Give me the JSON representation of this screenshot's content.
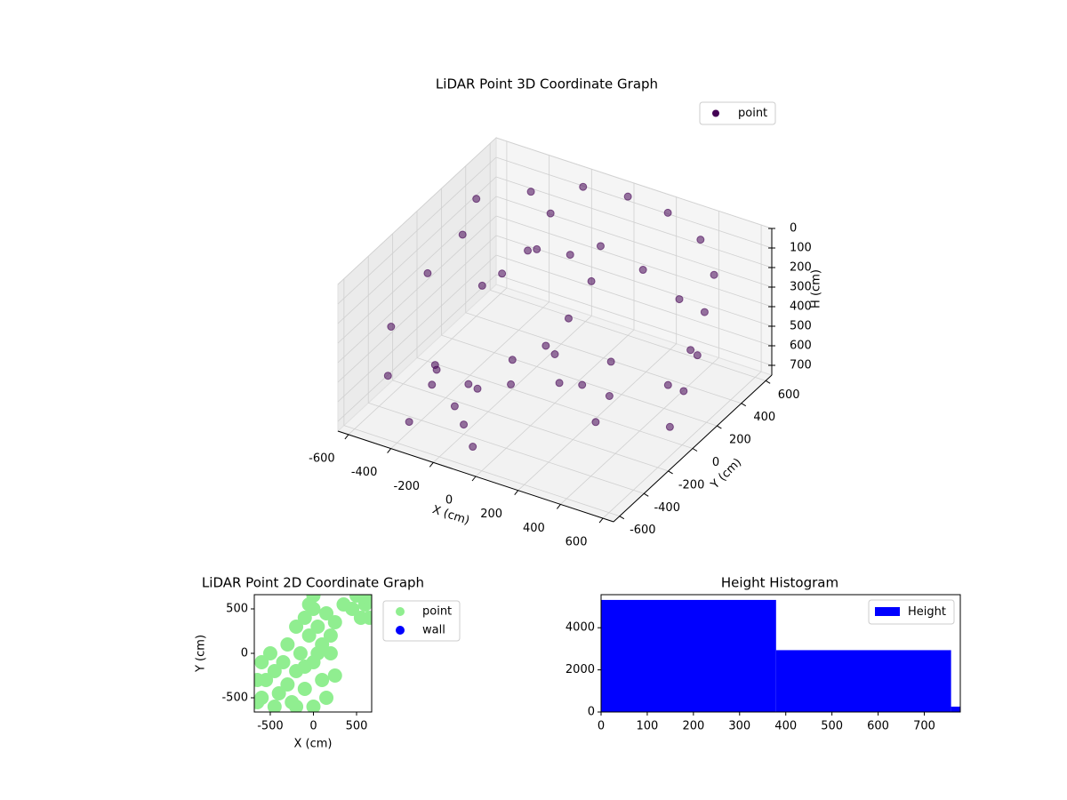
{
  "chart_data": [
    {
      "type": "scatter3d",
      "title": "LiDAR Point 3D Coordinate Graph",
      "xlabel": "X (cm)",
      "ylabel": "Y (cm)",
      "zlabel": "H (cm)",
      "xlim": [
        -650,
        650
      ],
      "ylim": [
        -650,
        650
      ],
      "zlim": [
        0,
        750
      ],
      "z_inverted": true,
      "xticks": [
        -600,
        -400,
        -200,
        0,
        200,
        400,
        600
      ],
      "yticks": [
        -600,
        -400,
        -200,
        0,
        200,
        400,
        600
      ],
      "zticks": [
        0,
        100,
        200,
        300,
        400,
        500,
        600,
        700
      ],
      "legend": "upper right",
      "series": [
        {
          "name": "point",
          "color": "#440154",
          "x": [
            -400,
            -200,
            0,
            200,
            400,
            550,
            620,
            640,
            620,
            500,
            550,
            600,
            300,
            100,
            -100,
            -600,
            -600,
            -500,
            -550,
            -450,
            -400,
            -350,
            -300,
            -600,
            -500,
            -450,
            -200,
            -150,
            -100,
            0,
            50,
            100,
            150,
            200,
            250,
            -50,
            0,
            -100,
            -200,
            -250,
            -300,
            -200,
            -100,
            -250,
            -350,
            -400
          ],
          "y": [
            500,
            580,
            600,
            580,
            500,
            350,
            150,
            0,
            -150,
            300,
            100,
            -100,
            500,
            550,
            550,
            -300,
            0,
            -500,
            200,
            -200,
            100,
            -400,
            300,
            400,
            -100,
            350,
            0,
            -100,
            100,
            0,
            -50,
            50,
            200,
            100,
            -100,
            200,
            300,
            300,
            200,
            400,
            -300,
            -400,
            -500,
            -200,
            -100,
            -500
          ],
          "z": [
            100,
            50,
            40,
            40,
            60,
            100,
            150,
            250,
            350,
            500,
            550,
            600,
            400,
            350,
            300,
            400,
            300,
            500,
            200,
            600,
            350,
            550,
            250,
            150,
            700,
            450,
            600,
            650,
            550,
            500,
            600,
            650,
            600,
            700,
            700,
            450,
            300,
            200,
            150,
            100,
            700,
            700,
            720,
            650,
            720,
            700
          ]
        }
      ]
    },
    {
      "type": "scatter",
      "title": "LiDAR Point 2D Coordinate Graph",
      "xlabel": "X (cm)",
      "ylabel": "Y (cm)",
      "xlim": [
        -685,
        675
      ],
      "ylim": [
        -660,
        660
      ],
      "xticks": [
        -500,
        0,
        500
      ],
      "yticks": [
        -500,
        0,
        500
      ],
      "legend": "outside right",
      "series": [
        {
          "name": "point",
          "color": "#90ee90",
          "x": [
            -600,
            -600,
            -550,
            -500,
            -450,
            -400,
            -350,
            -300,
            -300,
            -250,
            -200,
            -200,
            -150,
            -100,
            -100,
            -50,
            0,
            0,
            0,
            50,
            100,
            100,
            150,
            150,
            200,
            200,
            250,
            -200,
            -450,
            -650,
            -650,
            -100,
            50,
            250,
            -50,
            0,
            350,
            450,
            500,
            600,
            650,
            650,
            550
          ],
          "y": [
            -100,
            -500,
            -300,
            0,
            -200,
            -450,
            -100,
            100,
            -350,
            -550,
            300,
            -200,
            0,
            400,
            -400,
            200,
            500,
            -100,
            -600,
            300,
            100,
            -300,
            450,
            -500,
            200,
            0,
            -250,
            -600,
            -600,
            -300,
            -550,
            -150,
            0,
            350,
            550,
            650,
            550,
            500,
            650,
            550,
            400,
            620,
            400
          ]
        },
        {
          "name": "wall",
          "color": "#0000ff",
          "x": [],
          "y": []
        }
      ]
    },
    {
      "type": "histogram",
      "title": "Height Histogram",
      "name": "Height",
      "color": "#0000ff",
      "bins": [
        0,
        379,
        758,
        778
      ],
      "counts": [
        5320,
        2936,
        255
      ],
      "xlim": [
        0,
        778
      ],
      "ylim": [
        0,
        5570
      ],
      "xticks": [
        0,
        100,
        200,
        300,
        400,
        500,
        600,
        700
      ],
      "yticks": [
        0,
        2000,
        4000
      ],
      "legend": "upper right"
    }
  ]
}
